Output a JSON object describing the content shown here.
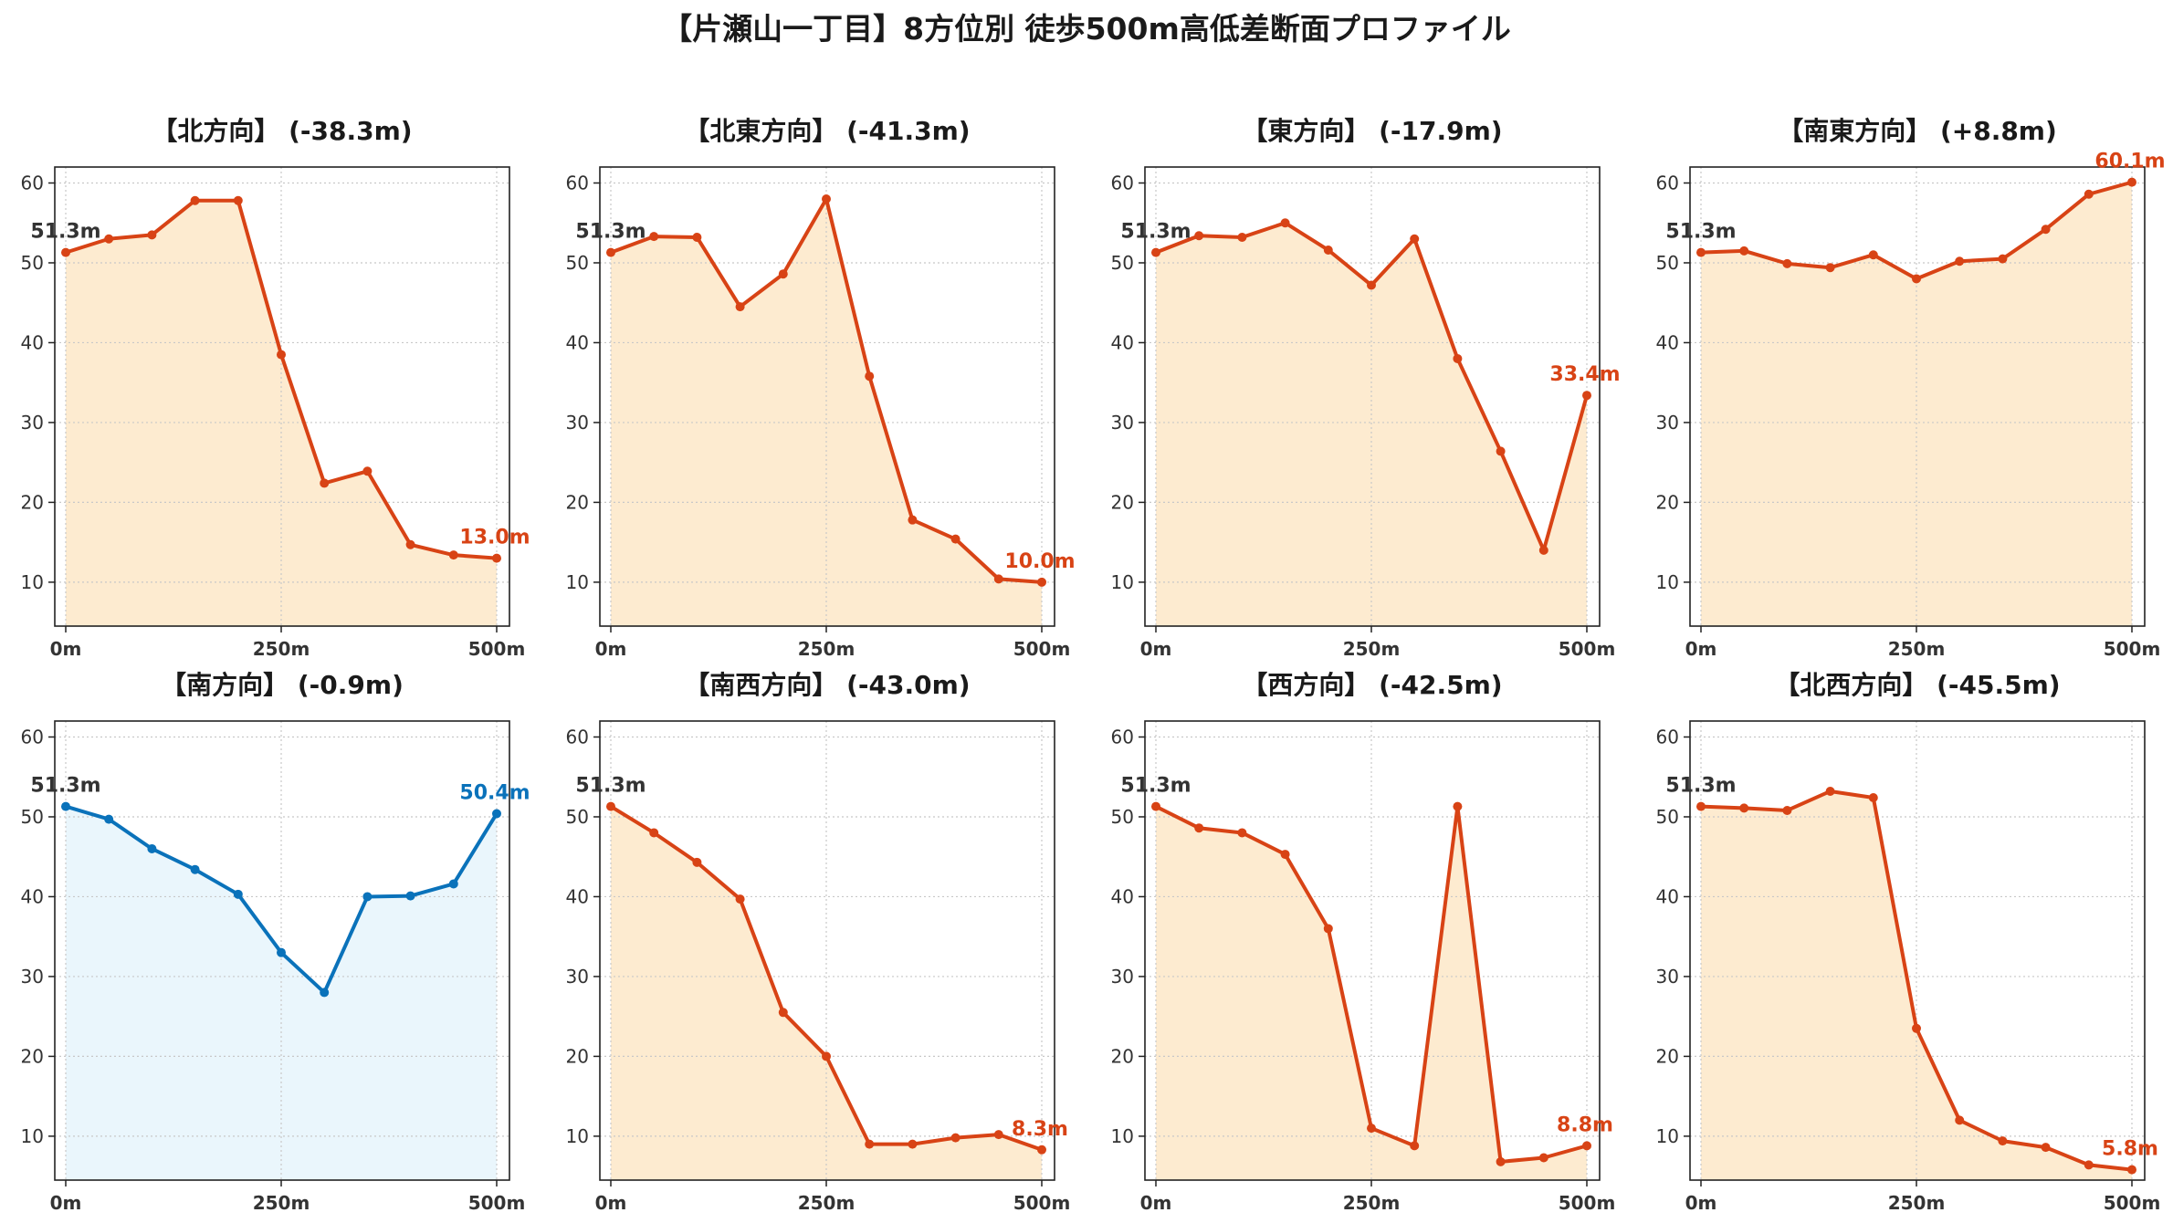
{
  "figure_title": "【片瀬山一丁目】8方位別 徒歩500m高低差断面プロファイル",
  "colors": {
    "descent_line": "#d84315",
    "descent_fill": "#fdebd0",
    "ascent_line": "#0a72ba",
    "ascent_fill": "#eaf6fc",
    "start_label": "#333333"
  },
  "chart_data": [
    {
      "type": "area",
      "title": "【北方向】 (-38.3m)",
      "x": [
        0,
        50,
        100,
        150,
        200,
        250,
        300,
        350,
        400,
        450,
        500
      ],
      "x_tick_labels": [
        "0m",
        "250m",
        "500m"
      ],
      "x_ticks": [
        0,
        250,
        500
      ],
      "y_ticks": [
        10,
        20,
        30,
        40,
        50,
        60
      ],
      "ylim": [
        4.5,
        62
      ],
      "values": [
        51.3,
        53.0,
        53.5,
        57.8,
        57.8,
        38.5,
        22.4,
        23.9,
        14.7,
        13.4,
        13.0
      ],
      "start_label": "51.3m",
      "end_label": "13.0m",
      "grid": true
    },
    {
      "type": "area",
      "title": "【北東方向】 (-41.3m)",
      "x": [
        0,
        50,
        100,
        150,
        200,
        250,
        300,
        350,
        400,
        450,
        500
      ],
      "x_tick_labels": [
        "0m",
        "250m",
        "500m"
      ],
      "x_ticks": [
        0,
        250,
        500
      ],
      "y_ticks": [
        10,
        20,
        30,
        40,
        50,
        60
      ],
      "ylim": [
        4.5,
        62
      ],
      "values": [
        51.3,
        53.3,
        53.2,
        44.5,
        48.6,
        58.0,
        35.8,
        17.8,
        15.4,
        10.4,
        10.0
      ],
      "start_label": "51.3m",
      "end_label": "10.0m",
      "grid": true
    },
    {
      "type": "area",
      "title": "【東方向】 (-17.9m)",
      "x": [
        0,
        50,
        100,
        150,
        200,
        250,
        300,
        350,
        400,
        450,
        500
      ],
      "x_tick_labels": [
        "0m",
        "250m",
        "500m"
      ],
      "x_ticks": [
        0,
        250,
        500
      ],
      "y_ticks": [
        10,
        20,
        30,
        40,
        50,
        60
      ],
      "ylim": [
        4.5,
        62
      ],
      "values": [
        51.3,
        53.4,
        53.2,
        55.0,
        51.6,
        47.2,
        53.0,
        38.0,
        26.4,
        14.0,
        33.4
      ],
      "start_label": "51.3m",
      "end_label": "33.4m",
      "grid": true
    },
    {
      "type": "area",
      "title": "【南東方向】 (+8.8m)",
      "x": [
        0,
        50,
        100,
        150,
        200,
        250,
        300,
        350,
        400,
        450,
        500
      ],
      "x_tick_labels": [
        "0m",
        "250m",
        "500m"
      ],
      "x_ticks": [
        0,
        250,
        500
      ],
      "y_ticks": [
        10,
        20,
        30,
        40,
        50,
        60
      ],
      "ylim": [
        4.5,
        62
      ],
      "values": [
        51.3,
        51.5,
        49.9,
        49.4,
        51.0,
        48.0,
        50.2,
        50.5,
        54.2,
        58.6,
        60.1
      ],
      "start_label": "51.3m",
      "end_label": "60.1m",
      "grid": true
    },
    {
      "type": "area",
      "title": "【南方向】 (-0.9m)",
      "x": [
        0,
        50,
        100,
        150,
        200,
        250,
        300,
        350,
        400,
        450,
        500
      ],
      "x_tick_labels": [
        "0m",
        "250m",
        "500m"
      ],
      "x_ticks": [
        0,
        250,
        500
      ],
      "y_ticks": [
        10,
        20,
        30,
        40,
        50,
        60
      ],
      "ylim": [
        4.5,
        62
      ],
      "values": [
        51.3,
        49.7,
        46.0,
        43.4,
        40.3,
        33.0,
        28.0,
        40.0,
        40.1,
        41.6,
        50.4
      ],
      "start_label": "51.3m",
      "end_label": "50.4m",
      "grid": true
    },
    {
      "type": "area",
      "title": "【南西方向】 (-43.0m)",
      "x": [
        0,
        50,
        100,
        150,
        200,
        250,
        300,
        350,
        400,
        450,
        500
      ],
      "x_tick_labels": [
        "0m",
        "250m",
        "500m"
      ],
      "x_ticks": [
        0,
        250,
        500
      ],
      "y_ticks": [
        10,
        20,
        30,
        40,
        50,
        60
      ],
      "ylim": [
        4.5,
        62
      ],
      "values": [
        51.3,
        48.0,
        44.3,
        39.7,
        25.5,
        20.0,
        9.0,
        9.0,
        9.8,
        10.2,
        8.3
      ],
      "start_label": "51.3m",
      "end_label": "8.3m",
      "grid": true
    },
    {
      "type": "area",
      "title": "【西方向】 (-42.5m)",
      "x": [
        0,
        50,
        100,
        150,
        200,
        250,
        300,
        350,
        400,
        450,
        500
      ],
      "x_tick_labels": [
        "0m",
        "250m",
        "500m"
      ],
      "x_ticks": [
        0,
        250,
        500
      ],
      "y_ticks": [
        10,
        20,
        30,
        40,
        50,
        60
      ],
      "ylim": [
        4.5,
        62
      ],
      "values": [
        51.3,
        48.6,
        48.0,
        45.3,
        36.0,
        11.0,
        8.8,
        51.3,
        6.8,
        7.3,
        8.8
      ],
      "start_label": "51.3m",
      "end_label": "8.8m",
      "grid": true
    },
    {
      "type": "area",
      "title": "【北西方向】 (-45.5m)",
      "x": [
        0,
        50,
        100,
        150,
        200,
        250,
        300,
        350,
        400,
        450,
        500
      ],
      "x_tick_labels": [
        "0m",
        "250m",
        "500m"
      ],
      "x_ticks": [
        0,
        250,
        500
      ],
      "y_ticks": [
        10,
        20,
        30,
        40,
        50,
        60
      ],
      "ylim": [
        4.5,
        62
      ],
      "values": [
        51.3,
        51.1,
        50.8,
        53.2,
        52.4,
        23.5,
        12.0,
        9.4,
        8.6,
        6.4,
        5.8
      ],
      "start_label": "51.3m",
      "end_label": "5.8m",
      "grid": true
    }
  ]
}
